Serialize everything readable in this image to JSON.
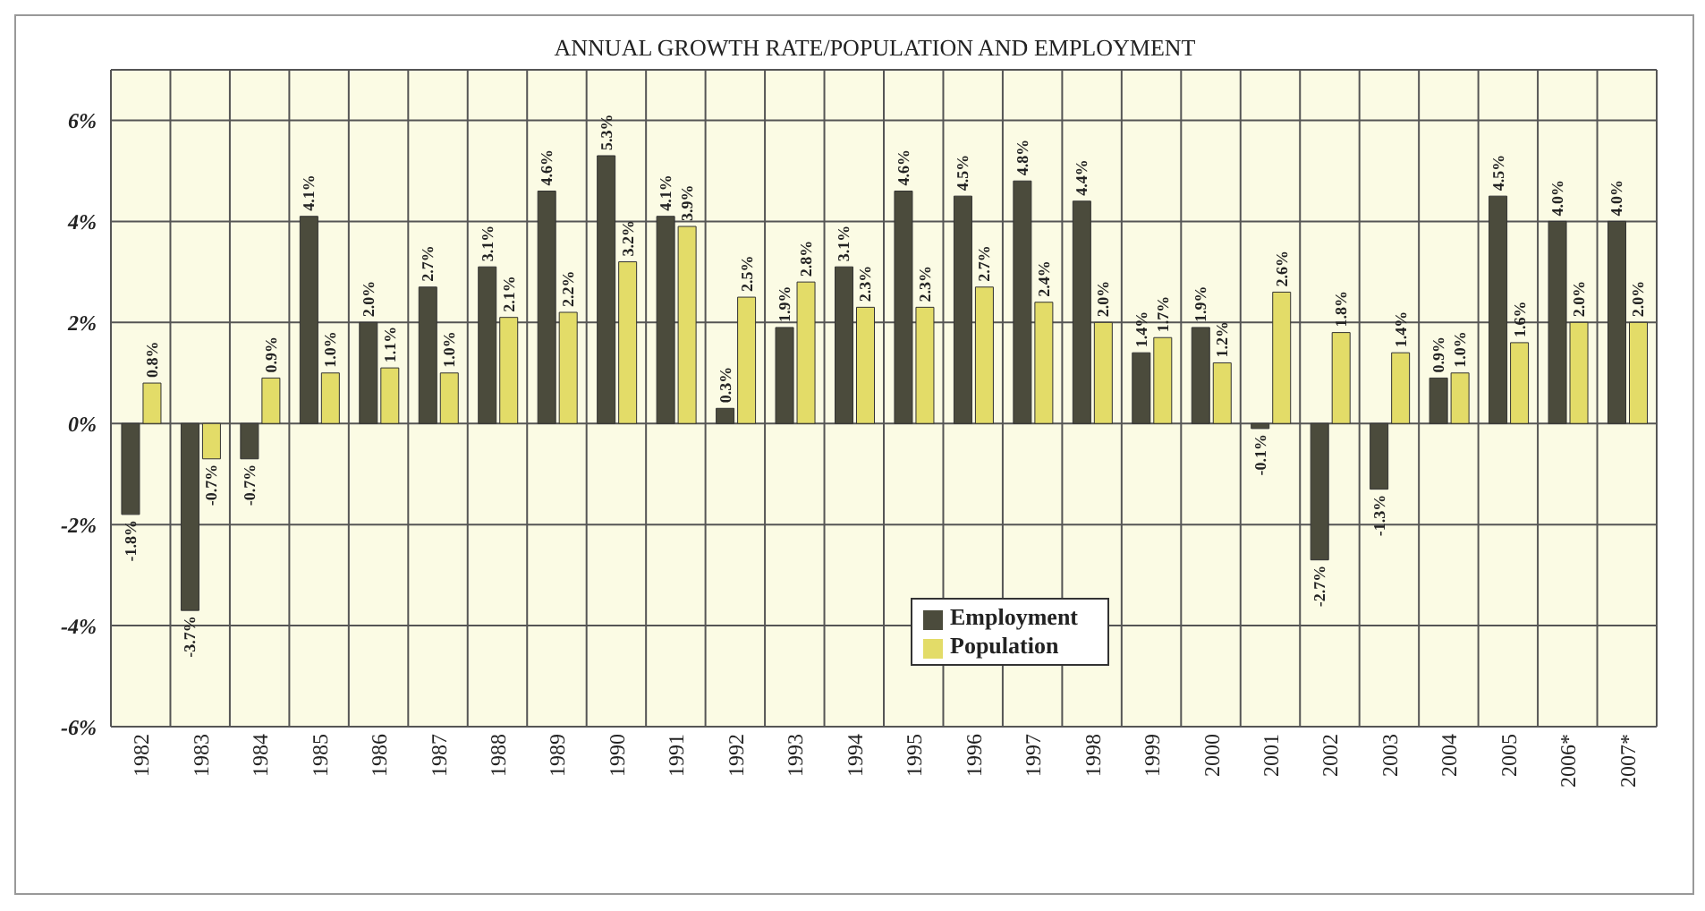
{
  "chart_data": {
    "type": "bar",
    "title": "ANNUAL GROWTH RATE/POPULATION AND EMPLOYMENT",
    "categories": [
      "1982",
      "1983",
      "1984",
      "1985",
      "1986",
      "1987",
      "1988",
      "1989",
      "1990",
      "1991",
      "1992",
      "1993",
      "1994",
      "1995",
      "1996",
      "1997",
      "1998",
      "1999",
      "2000",
      "2001",
      "2002",
      "2003",
      "2004",
      "2005",
      "2006*",
      "2007*"
    ],
    "series": [
      {
        "name": "Employment",
        "color": "#4b4b3c",
        "values": [
          -1.8,
          -3.7,
          -0.7,
          4.1,
          2.0,
          2.7,
          3.1,
          4.6,
          5.3,
          4.1,
          0.3,
          1.9,
          3.1,
          4.6,
          4.5,
          4.8,
          4.4,
          1.4,
          1.9,
          -0.1,
          -2.7,
          -1.3,
          0.9,
          4.5,
          4.0,
          4.0
        ],
        "value_labels": [
          "-1.8%",
          "-3.7%",
          "-0.7%",
          "4.1%",
          "2.0%",
          "2.7%",
          "3.1%",
          "4.6%",
          "5.3%",
          "4.1%",
          "0.3%",
          "1.9%",
          "3.1%",
          "4.6%",
          "4.5%",
          "4.8%",
          "4.4%",
          "1.4%",
          "1.9%",
          "-0.1%",
          "-2.7%",
          "-1.3%",
          "0.9%",
          "4.5%",
          "4.0%",
          "4.0%"
        ]
      },
      {
        "name": "Population",
        "color": "#e3dc68",
        "values": [
          0.8,
          -0.7,
          0.9,
          1.0,
          1.1,
          1.0,
          2.1,
          2.2,
          3.2,
          3.9,
          2.5,
          2.8,
          2.3,
          2.3,
          2.7,
          2.4,
          2.0,
          1.7,
          1.2,
          2.6,
          1.8,
          1.4,
          1.0,
          1.6,
          2.0,
          2.0
        ],
        "value_labels": [
          "0.8%",
          "-0.7%",
          "0.9%",
          "1.0%",
          "1.1%",
          "1.0%",
          "2.1%",
          "2.2%",
          "3.2%",
          "3.9%",
          "2.5%",
          "2.8%",
          "2.3%",
          "2.3%",
          "2.7%",
          "2.4%",
          "2.0%",
          "1.7%",
          "1.2%",
          "2.6%",
          "1.8%",
          "1.4%",
          "1.0%",
          "1.6%",
          "2.0%",
          "2.0%"
        ]
      }
    ],
    "ylim": [
      -6,
      7
    ],
    "yticks": [
      {
        "value": -6,
        "label": "-6%"
      },
      {
        "value": -4,
        "label": "-4%"
      },
      {
        "value": -2,
        "label": "-2%"
      },
      {
        "value": 0,
        "label": "0%"
      },
      {
        "value": 2,
        "label": "2%"
      },
      {
        "value": 4,
        "label": "4%"
      },
      {
        "value": 6,
        "label": "6%"
      }
    ],
    "grid": true,
    "legend": "bottom"
  }
}
